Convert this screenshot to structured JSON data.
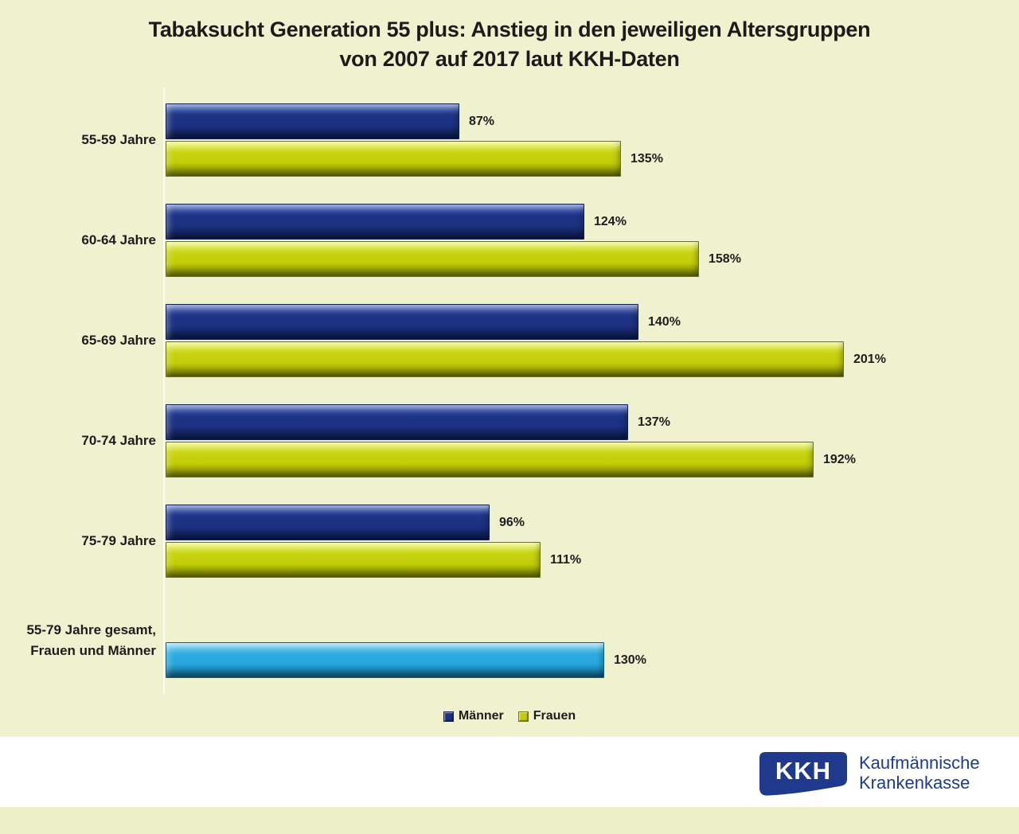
{
  "title": {
    "line1": "Tabaksucht Generation 55 plus: Anstieg in den jeweiligen Altersgruppen",
    "line2": "von 2007 auf 2017 laut KKH-Daten"
  },
  "chart_data": {
    "type": "bar",
    "orientation": "horizontal",
    "title": "Tabaksucht Generation 55 plus: Anstieg in den jeweiligen Altersgruppen von 2007 auf 2017 laut KKH-Daten",
    "categories": [
      "55-59 Jahre",
      "60-64 Jahre",
      "65-69 Jahre",
      "70-74 Jahre",
      "75-79 Jahre"
    ],
    "series": [
      {
        "name": "Männer",
        "color": "#1c3181",
        "values": [
          87,
          124,
          140,
          137,
          96
        ]
      },
      {
        "name": "Frauen",
        "color": "#c2cd08",
        "values": [
          135,
          158,
          201,
          192,
          111
        ]
      }
    ],
    "total": {
      "label_line1": "55-79 Jahre gesamt,",
      "label_line2": "Frauen und Männer",
      "value": 130,
      "color": "#27a5dc"
    },
    "value_suffix": "%",
    "grid": false,
    "legend_position": "bottom"
  },
  "legend": {
    "items": [
      {
        "label": "Männer",
        "color": "#1c3181"
      },
      {
        "label": "Frauen",
        "color": "#c2cd08"
      }
    ]
  },
  "footer": {
    "logo_text": "KKH",
    "company_line1": "Kaufmännische",
    "company_line2": "Krankenkasse"
  },
  "colors": {
    "background": "#f0f2cf",
    "maenner_bar": "#1c3181",
    "frauen_bar": "#c2cd08",
    "total_bar": "#27a5dc",
    "logo_blue": "#1f3a8c",
    "text": "#1c1c1c"
  }
}
